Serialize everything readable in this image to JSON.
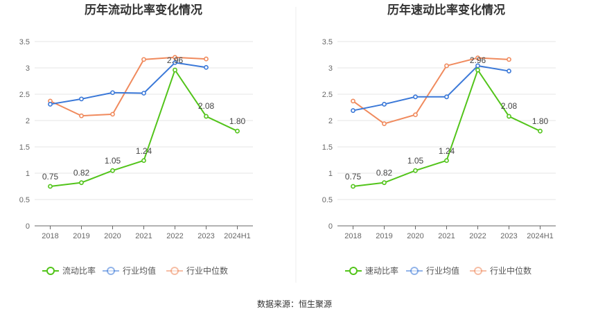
{
  "source_text": "数据来源：恒生聚源",
  "colors": {
    "company": "#52c41a",
    "industry_avg": "#3a78d8",
    "industry_median": "#f08a5d",
    "axis": "#666666",
    "grid": "#e6e6e6"
  },
  "chart_data": [
    {
      "type": "line",
      "title": "历年流动比率变化情况",
      "categories": [
        "2018",
        "2019",
        "2020",
        "2021",
        "2022",
        "2023",
        "2024H1"
      ],
      "ylim": [
        0,
        3.5
      ],
      "yticks": [
        0,
        0.5,
        1,
        1.5,
        2,
        2.5,
        3,
        3.5
      ],
      "grid": true,
      "legend_position": "bottom",
      "series": [
        {
          "name": "流动比率",
          "key": "company",
          "values": [
            0.75,
            0.82,
            1.05,
            1.24,
            2.96,
            2.08,
            1.8
          ],
          "labels": [
            "0.75",
            "0.82",
            "1.05",
            "1.24",
            "2.96",
            "2.08",
            "1.80"
          ]
        },
        {
          "name": "行业均值",
          "key": "industry_avg",
          "values": [
            2.31,
            2.41,
            2.53,
            2.52,
            3.1,
            3.01,
            null
          ]
        },
        {
          "name": "行业中位数",
          "key": "industry_median",
          "values": [
            2.37,
            2.09,
            2.12,
            3.16,
            3.2,
            3.17,
            null
          ]
        }
      ]
    },
    {
      "type": "line",
      "title": "历年速动比率变化情况",
      "categories": [
        "2018",
        "2019",
        "2020",
        "2021",
        "2022",
        "2023",
        "2024H1"
      ],
      "ylim": [
        0,
        3.5
      ],
      "yticks": [
        0,
        0.5,
        1,
        1.5,
        2,
        2.5,
        3,
        3.5
      ],
      "grid": true,
      "legend_position": "bottom",
      "series": [
        {
          "name": "速动比率",
          "key": "company",
          "values": [
            0.75,
            0.82,
            1.05,
            1.24,
            2.96,
            2.08,
            1.8
          ],
          "labels": [
            "0.75",
            "0.82",
            "1.05",
            "1.24",
            "2.96",
            "2.08",
            "1.80"
          ]
        },
        {
          "name": "行业均值",
          "key": "industry_avg",
          "values": [
            2.19,
            2.31,
            2.45,
            2.45,
            3.04,
            2.94,
            null
          ]
        },
        {
          "name": "行业中位数",
          "key": "industry_median",
          "values": [
            2.37,
            1.94,
            2.11,
            3.04,
            3.19,
            3.16,
            null
          ]
        }
      ]
    }
  ]
}
